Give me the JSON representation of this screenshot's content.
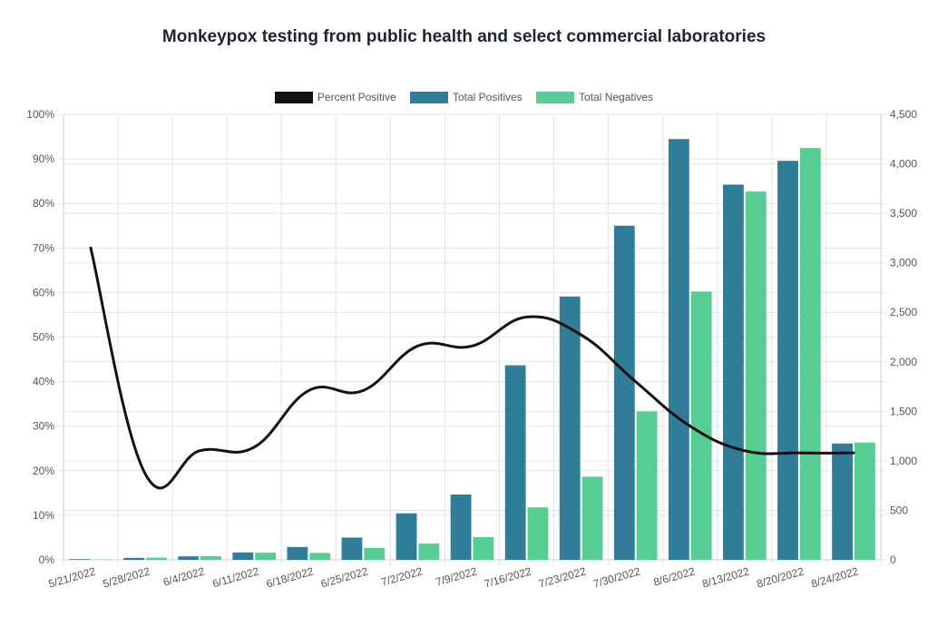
{
  "title": "Monkeypox testing from public health and select commercial laboratories",
  "colors": {
    "percent_positive": "#161012",
    "total_positives": "#2f7d99",
    "total_negatives": "#55cd93",
    "grid": "#e4e4e4",
    "axis_text": "#555555"
  },
  "chart_data": {
    "type": "bar",
    "title": "Monkeypox testing from public health and select commercial laboratories",
    "categories": [
      "5/21/2022",
      "5/28/2022",
      "6/4/2022",
      "6/11/2022",
      "6/18/2022",
      "6/25/2022",
      "7/2/2022",
      "7/9/2022",
      "7/16/2022",
      "7/23/2022",
      "7/30/2022",
      "8/6/2022",
      "8/13/2022",
      "8/20/2022",
      "8/24/2022"
    ],
    "series": [
      {
        "name": "Percent Positive",
        "type": "line",
        "axis": "left",
        "values": [
          70,
          19.3,
          24.5,
          25.3,
          38,
          38,
          48,
          48,
          54.5,
          50.5,
          40,
          30,
          24.5,
          24,
          24
        ]
      },
      {
        "name": "Total Positives",
        "type": "bar",
        "axis": "right",
        "values": [
          7,
          20,
          35,
          75,
          130,
          225,
          470,
          660,
          1965,
          2660,
          3375,
          4250,
          3790,
          4030,
          1175
        ]
      },
      {
        "name": "Total Negatives",
        "type": "bar",
        "axis": "right",
        "values": [
          3,
          22,
          37,
          72,
          70,
          120,
          165,
          230,
          530,
          840,
          1500,
          2710,
          3720,
          4160,
          1185
        ]
      }
    ],
    "y_left": {
      "min": 0,
      "max": 100,
      "step": 10,
      "tick_labels": [
        "0%",
        "10%",
        "20%",
        "30%",
        "40%",
        "50%",
        "60%",
        "70%",
        "80%",
        "90%",
        "100%"
      ]
    },
    "y_right": {
      "min": 0,
      "max": 4500,
      "step": 500,
      "tick_labels": [
        "0",
        "500",
        "1,000",
        "1,500",
        "2,000",
        "2,500",
        "3,000",
        "3,500",
        "4,000",
        "4,500"
      ]
    },
    "xlabel": "",
    "ylabel": "",
    "grid": true,
    "legend_position": "top"
  }
}
